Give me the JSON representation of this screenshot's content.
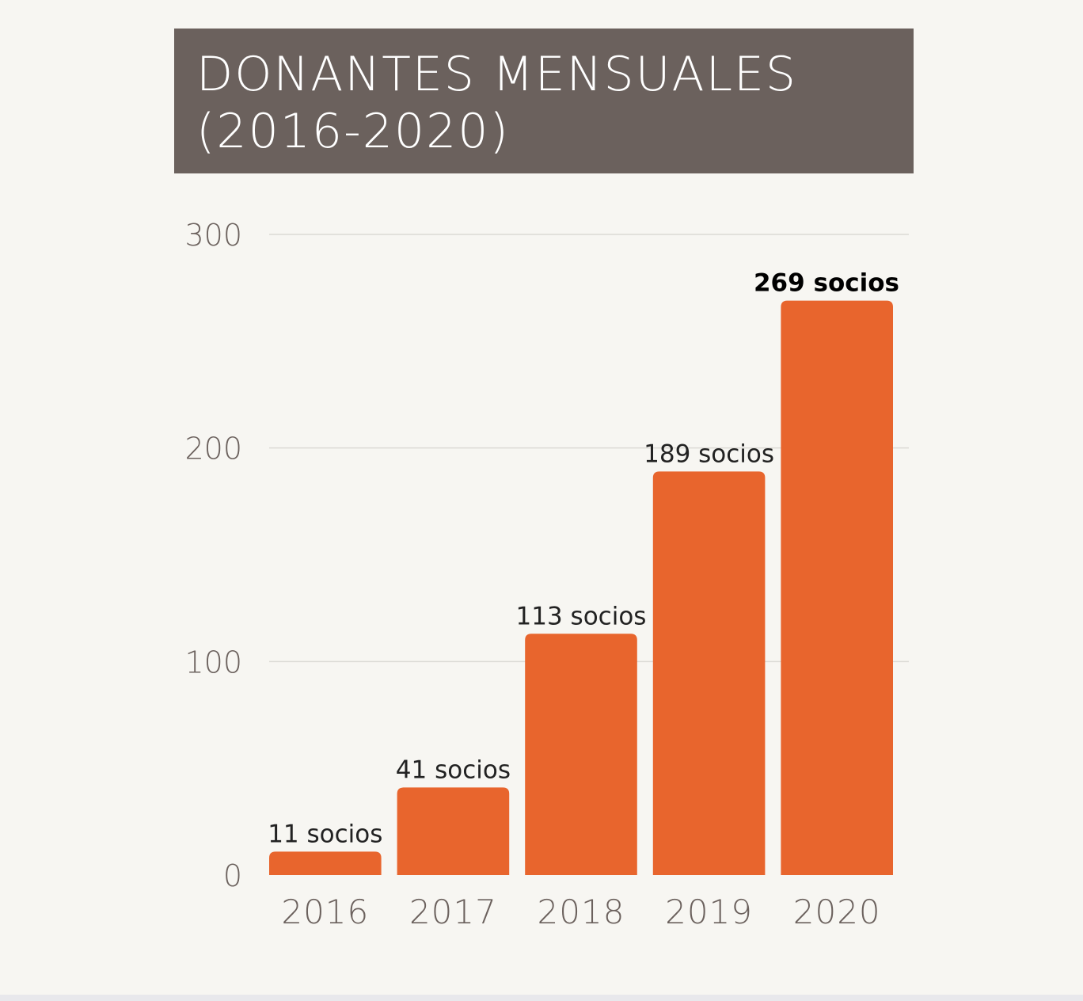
{
  "title_lines": [
    "DONANTES MENSUALES",
    "(2016-2020)"
  ],
  "chart_data": {
    "type": "bar",
    "title": "DONANTES MENSUALES (2016-2020)",
    "categories": [
      "2016",
      "2017",
      "2018",
      "2019",
      "2020"
    ],
    "values": [
      11,
      41,
      113,
      189,
      269
    ],
    "data_labels": [
      "11 socios",
      "41 socios",
      "113 socios",
      "189 socios",
      "269 socios"
    ],
    "highlight_index": 4,
    "yticks": [
      0,
      100,
      200,
      300
    ],
    "ylim": [
      0,
      300
    ],
    "xlabel": "",
    "ylabel": "",
    "grid": true,
    "bar_color": "#e8652d",
    "title_bg_color": "#6b615d"
  }
}
